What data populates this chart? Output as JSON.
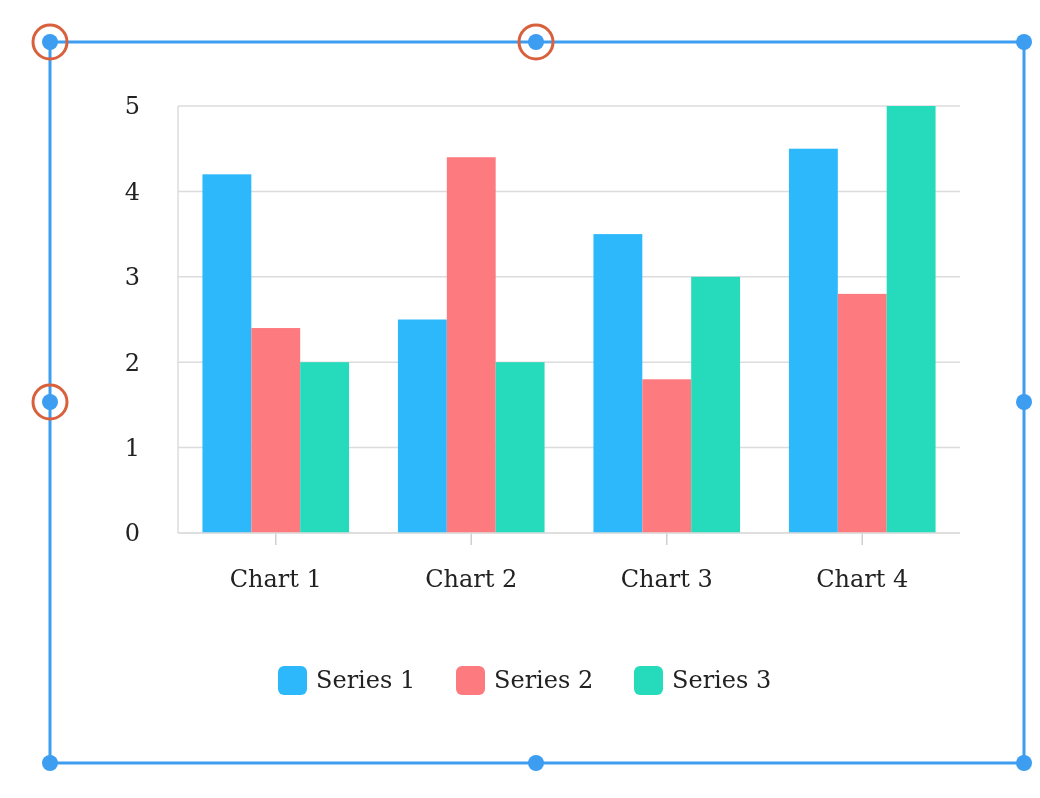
{
  "chart_data": {
    "type": "bar",
    "categories": [
      "Chart 1",
      "Chart 2",
      "Chart 3",
      "Chart 4"
    ],
    "series": [
      {
        "name": "Series 1",
        "color": "#2db8fb",
        "values": [
          4.2,
          2.5,
          3.5,
          4.5
        ]
      },
      {
        "name": "Series 2",
        "color": "#fd7b7e",
        "values": [
          2.4,
          4.4,
          1.8,
          2.8
        ]
      },
      {
        "name": "Series 3",
        "color": "#25dbbb",
        "values": [
          2,
          2,
          3,
          5
        ]
      }
    ],
    "ylim": [
      0,
      5
    ],
    "yticks": [
      0,
      1,
      2,
      3,
      4,
      5
    ],
    "grid": "y",
    "legend": "bottom"
  }
}
